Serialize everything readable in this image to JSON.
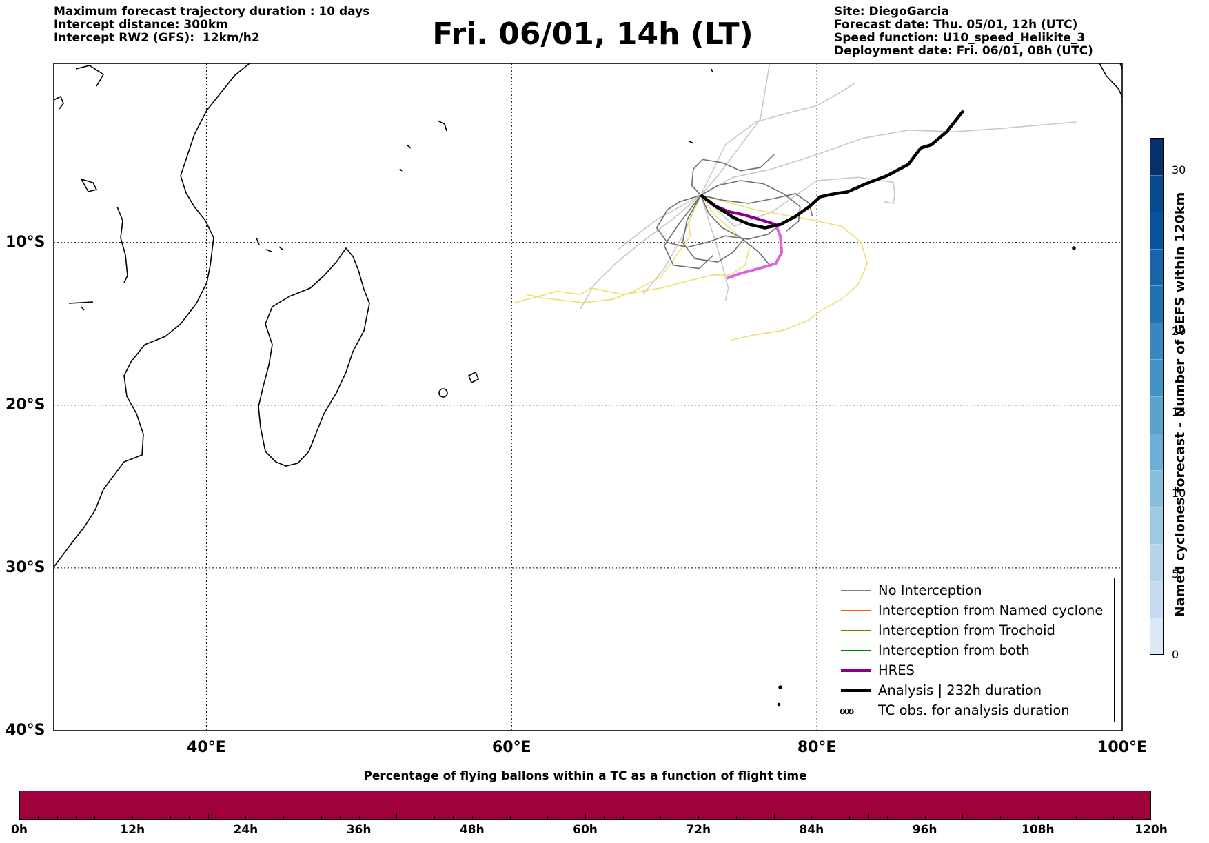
{
  "header": {
    "title": "Fri. 06/01, 14h (LT)",
    "left_info": [
      "Maximum forecast trajectory duration : 10 days",
      "Intercept distance: 300km",
      "Intercept RW2 (GFS):  12km/h2"
    ],
    "right_info": [
      "Site: DiegoGarcia",
      "Forecast date: Thu. 05/01, 12h (UTC)",
      "Speed function: U10_speed_Helikite_3",
      "Deployment date: Fri. 06/01, 08h (UTC)"
    ]
  },
  "map": {
    "lon_range": [
      30,
      100
    ],
    "lat_range": [
      -40,
      1
    ],
    "lat_gridlines": [
      -10,
      -20,
      -30
    ],
    "lon_gridlines": [
      40,
      60,
      80
    ],
    "lat_labels": [
      {
        "lat": -10,
        "text": "10°S"
      },
      {
        "lat": -20,
        "text": "20°S"
      },
      {
        "lat": -30,
        "text": "30°S"
      },
      {
        "lat": -40,
        "text": "40°S"
      }
    ],
    "lon_labels": [
      {
        "lon": 40,
        "text": "40°E"
      },
      {
        "lon": 60,
        "text": "60°E"
      },
      {
        "lon": 80,
        "text": "80°E"
      },
      {
        "lon": 100,
        "text": "100°E"
      }
    ],
    "analysis_track": [
      [
        72.4,
        -7.1
      ],
      [
        73.4,
        -7.8
      ],
      [
        74.6,
        -8.5
      ],
      [
        75.6,
        -8.9
      ],
      [
        76.6,
        -9.1
      ],
      [
        77.6,
        -8.9
      ],
      [
        78.6,
        -8.4
      ],
      [
        79.5,
        -7.8
      ],
      [
        80.2,
        -7.2
      ],
      [
        81.2,
        -7.0
      ],
      [
        82.0,
        -6.9
      ],
      [
        83.2,
        -6.4
      ],
      [
        84.6,
        -5.9
      ],
      [
        86.0,
        -5.2
      ],
      [
        86.8,
        -4.2
      ],
      [
        87.5,
        -4.0
      ],
      [
        88.5,
        -3.2
      ],
      [
        89.6,
        -1.9
      ]
    ],
    "hres_track": [
      [
        72.4,
        -7.1
      ],
      [
        73.2,
        -7.7
      ],
      [
        74.2,
        -8.1
      ],
      [
        75.2,
        -8.3
      ],
      [
        76.3,
        -8.6
      ],
      [
        77.3,
        -8.9
      ],
      [
        77.6,
        -9.6
      ],
      [
        77.7,
        -10.6
      ],
      [
        77.3,
        -11.3
      ],
      [
        76.2,
        -11.6
      ],
      [
        75.0,
        -11.9
      ],
      [
        74.1,
        -12.2
      ]
    ],
    "sample_tracks_no_interception": [
      [
        [
          72.4,
          -7.1
        ],
        [
          71.0,
          -7.5
        ],
        [
          70.2,
          -8.0
        ],
        [
          69.5,
          -9.1
        ],
        [
          70.2,
          -10.0
        ],
        [
          71.5,
          -10.3
        ],
        [
          72.8,
          -10.0
        ],
        [
          74.0,
          -9.6
        ],
        [
          75.5,
          -9.8
        ],
        [
          76.8,
          -9.5
        ],
        [
          77.6,
          -8.9
        ]
      ],
      [
        [
          72.4,
          -7.1
        ],
        [
          73.5,
          -6.5
        ],
        [
          75.0,
          -6.2
        ],
        [
          76.5,
          -6.4
        ],
        [
          77.8,
          -7.0
        ],
        [
          78.9,
          -7.8
        ],
        [
          78.8,
          -8.7
        ],
        [
          78.0,
          -9.3
        ]
      ],
      [
        [
          72.4,
          -7.1
        ],
        [
          71.5,
          -8.6
        ],
        [
          71.2,
          -10.0
        ],
        [
          72.0,
          -11.0
        ],
        [
          73.5,
          -11.2
        ],
        [
          74.5,
          -10.6
        ],
        [
          75.2,
          -9.8
        ]
      ],
      [
        [
          72.4,
          -7.1
        ],
        [
          73.8,
          -7.4
        ],
        [
          75.5,
          -7.6
        ],
        [
          77.2,
          -7.3
        ],
        [
          78.6,
          -7.0
        ],
        [
          79.5,
          -7.6
        ],
        [
          79.7,
          -8.4
        ]
      ],
      [
        [
          72.4,
          -7.1
        ],
        [
          72.9,
          -8.2
        ],
        [
          73.8,
          -9.1
        ],
        [
          75.0,
          -9.7
        ],
        [
          76.2,
          -10.6
        ],
        [
          77.0,
          -11.5
        ]
      ],
      [
        [
          72.4,
          -7.1
        ],
        [
          71.8,
          -6.5
        ],
        [
          71.9,
          -5.5
        ],
        [
          72.5,
          -4.9
        ],
        [
          73.8,
          -5.1
        ],
        [
          75.0,
          -5.6
        ],
        [
          76.3,
          -5.4
        ],
        [
          77.2,
          -4.6
        ]
      ],
      [
        [
          72.4,
          -7.1
        ],
        [
          71.0,
          -8.8
        ],
        [
          70.0,
          -10.2
        ],
        [
          70.6,
          -11.4
        ],
        [
          72.3,
          -11.6
        ],
        [
          73.2,
          -10.8
        ]
      ]
    ],
    "sample_tracks_light": [
      [
        [
          72.4,
          -7.1
        ],
        [
          74.0,
          -4.0
        ],
        [
          76.0,
          -2.6
        ],
        [
          78.3,
          -2.0
        ],
        [
          80.0,
          -1.6
        ],
        [
          81.5,
          -0.8
        ],
        [
          82.5,
          -0.2
        ]
      ],
      [
        [
          72.4,
          -7.1
        ],
        [
          74.5,
          -6.0
        ],
        [
          77.0,
          -5.5
        ],
        [
          80.0,
          -4.6
        ],
        [
          83.0,
          -3.6
        ],
        [
          86.0,
          -3.1
        ],
        [
          89.0,
          -3.2
        ],
        [
          92.0,
          -3.0
        ],
        [
          94.5,
          -2.8
        ],
        [
          97.0,
          -2.6
        ]
      ],
      [
        [
          72.4,
          -7.1
        ],
        [
          70.5,
          -8.6
        ],
        [
          68.5,
          -10.0
        ],
        [
          66.8,
          -11.3
        ],
        [
          65.4,
          -12.6
        ],
        [
          64.5,
          -14.1
        ]
      ],
      [
        [
          72.4,
          -7.1
        ],
        [
          71.2,
          -9.6
        ],
        [
          70.0,
          -11.6
        ],
        [
          68.6,
          -13.2
        ]
      ],
      [
        [
          72.4,
          -7.1
        ],
        [
          69.5,
          -8.6
        ],
        [
          67.0,
          -10.4
        ]
      ],
      [
        [
          72.4,
          -7.1
        ],
        [
          73.6,
          -5.8
        ],
        [
          76.3,
          -2.4
        ],
        [
          76.9,
          1.0
        ]
      ],
      [
        [
          72.4,
          -7.1
        ],
        [
          74.6,
          -9.0
        ],
        [
          77.1,
          -8.1
        ],
        [
          80.0,
          -6.2
        ],
        [
          82.7,
          -6.0
        ],
        [
          85.0,
          -6.3
        ],
        [
          85.1,
          -7.1
        ],
        [
          85.0,
          -7.6
        ],
        [
          84.4,
          -7.5
        ]
      ],
      [
        [
          72.4,
          -7.1
        ],
        [
          73.5,
          -10.4
        ],
        [
          74.2,
          -12.8
        ],
        [
          74.0,
          -13.6
        ]
      ]
    ],
    "sample_tracks_yellow": [
      [
        [
          72.4,
          -7.1
        ],
        [
          73.3,
          -8.3
        ],
        [
          74.4,
          -9.2
        ],
        [
          75.6,
          -10.2
        ],
        [
          75.3,
          -11.4
        ],
        [
          74.3,
          -12.0
        ],
        [
          73.2,
          -12.0
        ],
        [
          71.8,
          -12.3
        ],
        [
          69.8,
          -12.8
        ],
        [
          67.3,
          -13.2
        ],
        [
          65.2,
          -12.8
        ],
        [
          64.5,
          -13.2
        ],
        [
          63.0,
          -13.0
        ],
        [
          61.0,
          -13.5
        ],
        [
          60.2,
          -13.7
        ]
      ],
      [
        [
          72.4,
          -7.1
        ],
        [
          76.0,
          -8.0
        ],
        [
          79.6,
          -8.6
        ],
        [
          81.6,
          -9.0
        ],
        [
          82.9,
          -10.0
        ],
        [
          83.3,
          -11.3
        ],
        [
          82.7,
          -12.6
        ],
        [
          81.6,
          -13.5
        ],
        [
          80.4,
          -14.1
        ],
        [
          79.4,
          -14.8
        ],
        [
          77.8,
          -15.4
        ],
        [
          75.8,
          -15.7
        ],
        [
          74.4,
          -16.0
        ]
      ],
      [
        [
          72.4,
          -7.1
        ],
        [
          71.6,
          -8.7
        ],
        [
          71.7,
          -9.6
        ],
        [
          70.8,
          -10.8
        ],
        [
          69.8,
          -12.1
        ],
        [
          68.0,
          -13.0
        ],
        [
          66.6,
          -13.5
        ],
        [
          64.6,
          -13.7
        ],
        [
          62.0,
          -13.4
        ],
        [
          61.0,
          -13.2
        ]
      ]
    ],
    "colorbar": {
      "title": "Named cyclones forecast - Number of GEFS within 120km",
      "ticks": [
        0,
        5,
        10,
        15,
        20,
        30
      ],
      "range": [
        0,
        32
      ],
      "colors": [
        "#dbe9f6",
        "#c6dbef",
        "#b5d4e9",
        "#9ecae1",
        "#88bedc",
        "#6baed6",
        "#5aa3cf",
        "#4292c6",
        "#3a86c0",
        "#2171b5",
        "#1764ab",
        "#08519c",
        "#084a91",
        "#08306b"
      ]
    }
  },
  "legend": {
    "items": [
      {
        "label": "No Interception",
        "color": "#808080",
        "width": 1.5
      },
      {
        "label": "Interception from Named cyclone",
        "color": "#ff5a14",
        "width": 1.5
      },
      {
        "label": "Interception from Trochoid",
        "color": "#7a7a00",
        "width": 1.5
      },
      {
        "label": "Interception from both",
        "color": "#008000",
        "width": 1.5
      },
      {
        "label": "HRES",
        "color": "#8b008b",
        "width": 4
      },
      {
        "label": "Analysis | 232h duration",
        "color": "#000000",
        "width": 4
      },
      {
        "label": "TC obs. for analysis duration",
        "symbol": "ℴℴℴ"
      }
    ]
  },
  "time_bar": {
    "title": "Percentage of flying ballons within a TC as a function of flight time",
    "color": "#a0003c",
    "tick_labels": [
      "0h",
      "12h",
      "24h",
      "36h",
      "48h",
      "60h",
      "72h",
      "84h",
      "96h",
      "108h",
      "120h"
    ]
  }
}
